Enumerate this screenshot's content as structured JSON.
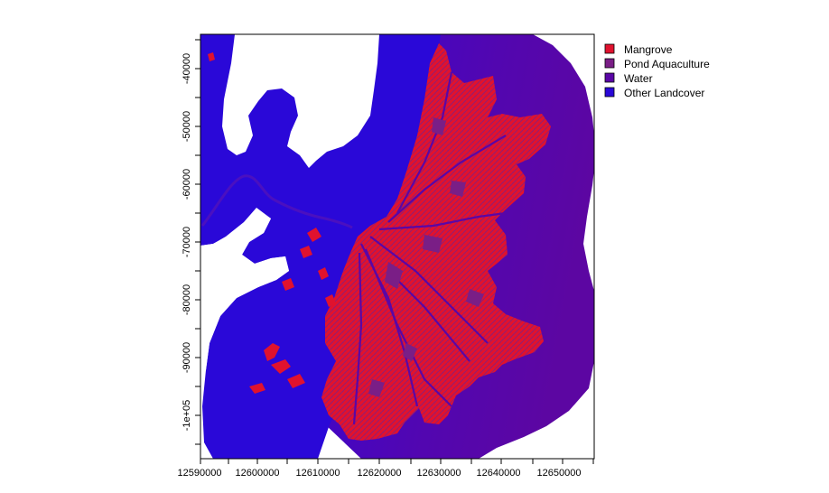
{
  "map": {
    "x_ticks": [
      "12590000",
      "12600000",
      "12610000",
      "12620000",
      "12630000",
      "12640000",
      "12650000"
    ],
    "y_ticks": [
      "-40000",
      "-50000",
      "-60000",
      "-70000",
      "-80000",
      "-90000",
      "-1e+05"
    ],
    "legend": [
      {
        "label": "Mangrove",
        "color": "#e0122e"
      },
      {
        "label": "Pond Aquaculture",
        "color": "#7a1e86"
      },
      {
        "label": "Water",
        "color": "#5a06a6"
      },
      {
        "label": "Other Landcover",
        "color": "#2a08d8"
      }
    ]
  }
}
